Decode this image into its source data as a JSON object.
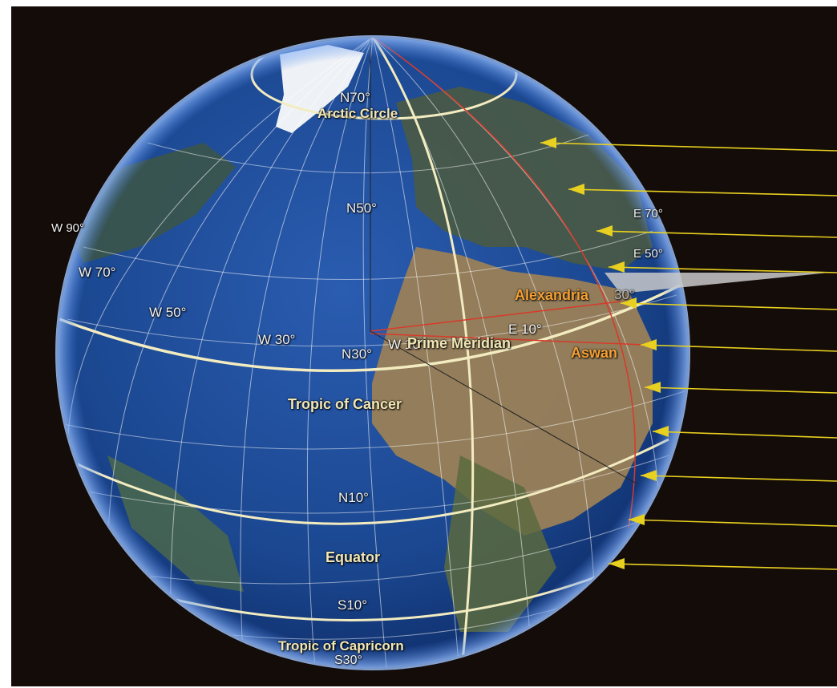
{
  "colors": {
    "background": "#140c08",
    "ocean": "#1f4d9a",
    "land": "#8b7a5a",
    "graticule": "#ffffff",
    "major_circles": "#f3ecc0",
    "sun_rays": "#e8d020",
    "city_label": "#f5a033",
    "meridian_line": "#d83a2a"
  },
  "latitude_labels": {
    "n70": "N70°",
    "n50": "N50°",
    "n30": "N30°",
    "n10": "N10°",
    "s10": "S10°",
    "s30": "S30°"
  },
  "longitude_labels": {
    "w90": "W 90°",
    "w70": "W 70°",
    "w50": "W 50°",
    "w30": "W 30°",
    "w10": "W 10°",
    "e10": "E 10°",
    "e30": "30°",
    "e50": "E 50°",
    "e70": "E 70°"
  },
  "circle_labels": {
    "arctic": "Arctic Circle",
    "cancer": "Tropic of Cancer",
    "equator": "Equator",
    "capricorn": "Tropic of Capricorn",
    "prime_meridian": "Prime Meridian"
  },
  "cities": {
    "alexandria": "Alexandria",
    "aswan": "Aswan"
  },
  "icons": [
    "sun-ray-arrow-icon"
  ]
}
